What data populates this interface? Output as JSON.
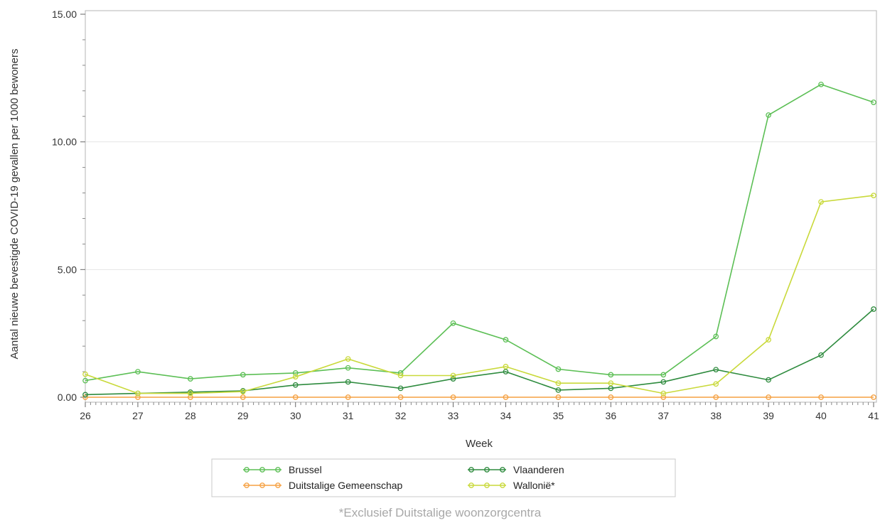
{
  "chart_data": {
    "type": "line",
    "x": [
      26,
      27,
      28,
      29,
      30,
      31,
      32,
      33,
      34,
      35,
      36,
      37,
      38,
      39,
      40,
      41
    ],
    "xlabel": "Week",
    "ylabel": "Aantal nieuwe bevestigde COVID-19 gevallen per 1000 bewoners",
    "ylim": [
      0,
      15
    ],
    "yticks": [
      "0.00",
      "5.00",
      "10.00",
      "15.00"
    ],
    "grid": true,
    "legend_position": "bottom",
    "series": [
      {
        "name": "Brussel",
        "color": "#5cbf55",
        "values": [
          0.65,
          1.0,
          0.72,
          0.88,
          0.95,
          1.15,
          0.95,
          2.9,
          2.25,
          1.1,
          0.88,
          0.88,
          2.38,
          11.05,
          12.25,
          11.55
        ]
      },
      {
        "name": "Vlaanderen",
        "color": "#2e8b3e",
        "values": [
          0.1,
          0.15,
          0.2,
          0.25,
          0.48,
          0.6,
          0.35,
          0.72,
          1.0,
          0.28,
          0.35,
          0.6,
          1.08,
          0.68,
          1.65,
          3.45
        ]
      },
      {
        "name": "Duitstalige Gemeenschap",
        "color": "#f5a142",
        "values": [
          0,
          0,
          0,
          0,
          0,
          0,
          0,
          0,
          0,
          0,
          0,
          0,
          0,
          0,
          0,
          0
        ]
      },
      {
        "name": "Wallonië*",
        "color": "#c9d93a",
        "values": [
          0.9,
          0.15,
          0.15,
          0.22,
          0.8,
          1.5,
          0.85,
          0.85,
          1.2,
          0.55,
          0.55,
          0.15,
          0.52,
          2.25,
          7.65,
          7.9
        ]
      }
    ],
    "footnote": "*Exclusief Duitstalige woonzorgcentra"
  }
}
